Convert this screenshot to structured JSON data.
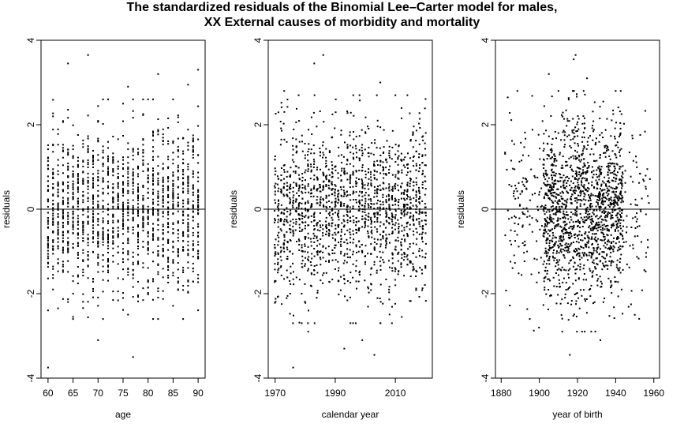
{
  "title_line1": "The standardized residuals of the Binomial Lee–Carter model for males,",
  "title_line2": "XX External causes of morbidity and mortality",
  "chart_data": [
    {
      "type": "scatter",
      "id": "age",
      "xlabel": "age",
      "ylabel": "residuals",
      "xlim": [
        58.6,
        91.4
      ],
      "ylim": [
        -4,
        4
      ],
      "xticks": [
        60,
        65,
        70,
        75,
        80,
        85,
        90
      ],
      "yticks": [
        -4,
        -2,
        0,
        2,
        4
      ],
      "reference_line": 0,
      "x_values": "integers 60-90",
      "seed": 11,
      "outliers": [
        [
          68,
          3.65
        ],
        [
          64,
          3.45
        ],
        [
          60,
          -3.75
        ],
        [
          77,
          -3.5
        ],
        [
          90,
          3.3
        ],
        [
          82,
          3.2
        ],
        [
          70,
          -3.1
        ],
        [
          88,
          2.95
        ],
        [
          76,
          2.9
        ],
        [
          65,
          -2.55
        ]
      ]
    },
    {
      "type": "scatter",
      "id": "calendar-year",
      "xlabel": "calendar year",
      "ylabel": "residuals",
      "xlim": [
        1967.7,
        2022.3
      ],
      "ylim": [
        -4,
        4
      ],
      "xticks": [
        1970,
        1990,
        2010
      ],
      "yticks": [
        -4,
        -2,
        0,
        2,
        4
      ],
      "reference_line": 0,
      "x_values": "integers 1970-2020",
      "seed": 23,
      "outliers": [
        [
          1986,
          3.65
        ],
        [
          1983,
          3.45
        ],
        [
          1976,
          -3.75
        ],
        [
          2003,
          -3.45
        ],
        [
          1993,
          -3.3
        ],
        [
          1973,
          2.8
        ],
        [
          2014,
          2.7
        ],
        [
          1999,
          -3.1
        ],
        [
          2005,
          3.0
        ],
        [
          1981,
          -2.9
        ]
      ]
    },
    {
      "type": "scatter",
      "id": "year-of-birth",
      "xlabel": "year of birth",
      "ylabel": "residuals",
      "xlim": [
        1877,
        1963
      ],
      "ylim": [
        -4,
        4
      ],
      "xticks": [
        1880,
        1900,
        1920,
        1940,
        1960
      ],
      "yticks": [
        -4,
        -2,
        0,
        2,
        4
      ],
      "reference_line": 0,
      "x_values": "1880-1960, concentrated 1900-1945",
      "seed": 37,
      "outliers": [
        [
          1919,
          3.65
        ],
        [
          1918,
          3.55
        ],
        [
          1916,
          -3.45
        ],
        [
          1905,
          3.2
        ],
        [
          1932,
          -3.1
        ],
        [
          1895,
          -2.6
        ],
        [
          1950,
          -2.5
        ],
        [
          1925,
          3.1
        ],
        [
          1912,
          -2.9
        ],
        [
          1940,
          2.8
        ]
      ]
    }
  ]
}
